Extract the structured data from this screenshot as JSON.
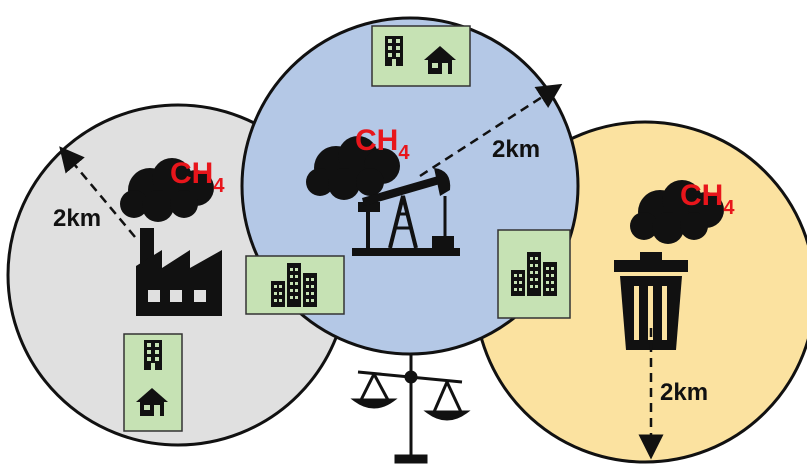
{
  "zones": {
    "left": {
      "fill": "#e0e0e0",
      "source": "factory-icon",
      "emission": {
        "main": "CH",
        "sub": "4"
      },
      "radius_label": "2km"
    },
    "center": {
      "fill": "#b4c8e6",
      "source": "oil-pump-icon",
      "emission": {
        "main": "CH",
        "sub": "4"
      },
      "radius_label": "2km"
    },
    "right": {
      "fill": "#fbe2a0",
      "source": "trash-can-icon",
      "emission": {
        "main": "CH",
        "sub": "4"
      },
      "radius_label": "2km"
    }
  },
  "colors": {
    "methane_text": "#e8151b",
    "residential_box": "#c6e2b4",
    "outline": "#111111"
  },
  "icons": [
    "apartment-building-icon",
    "house-icon",
    "city-buildings-icon",
    "balance-scale-icon",
    "smoke-cloud-icon"
  ]
}
